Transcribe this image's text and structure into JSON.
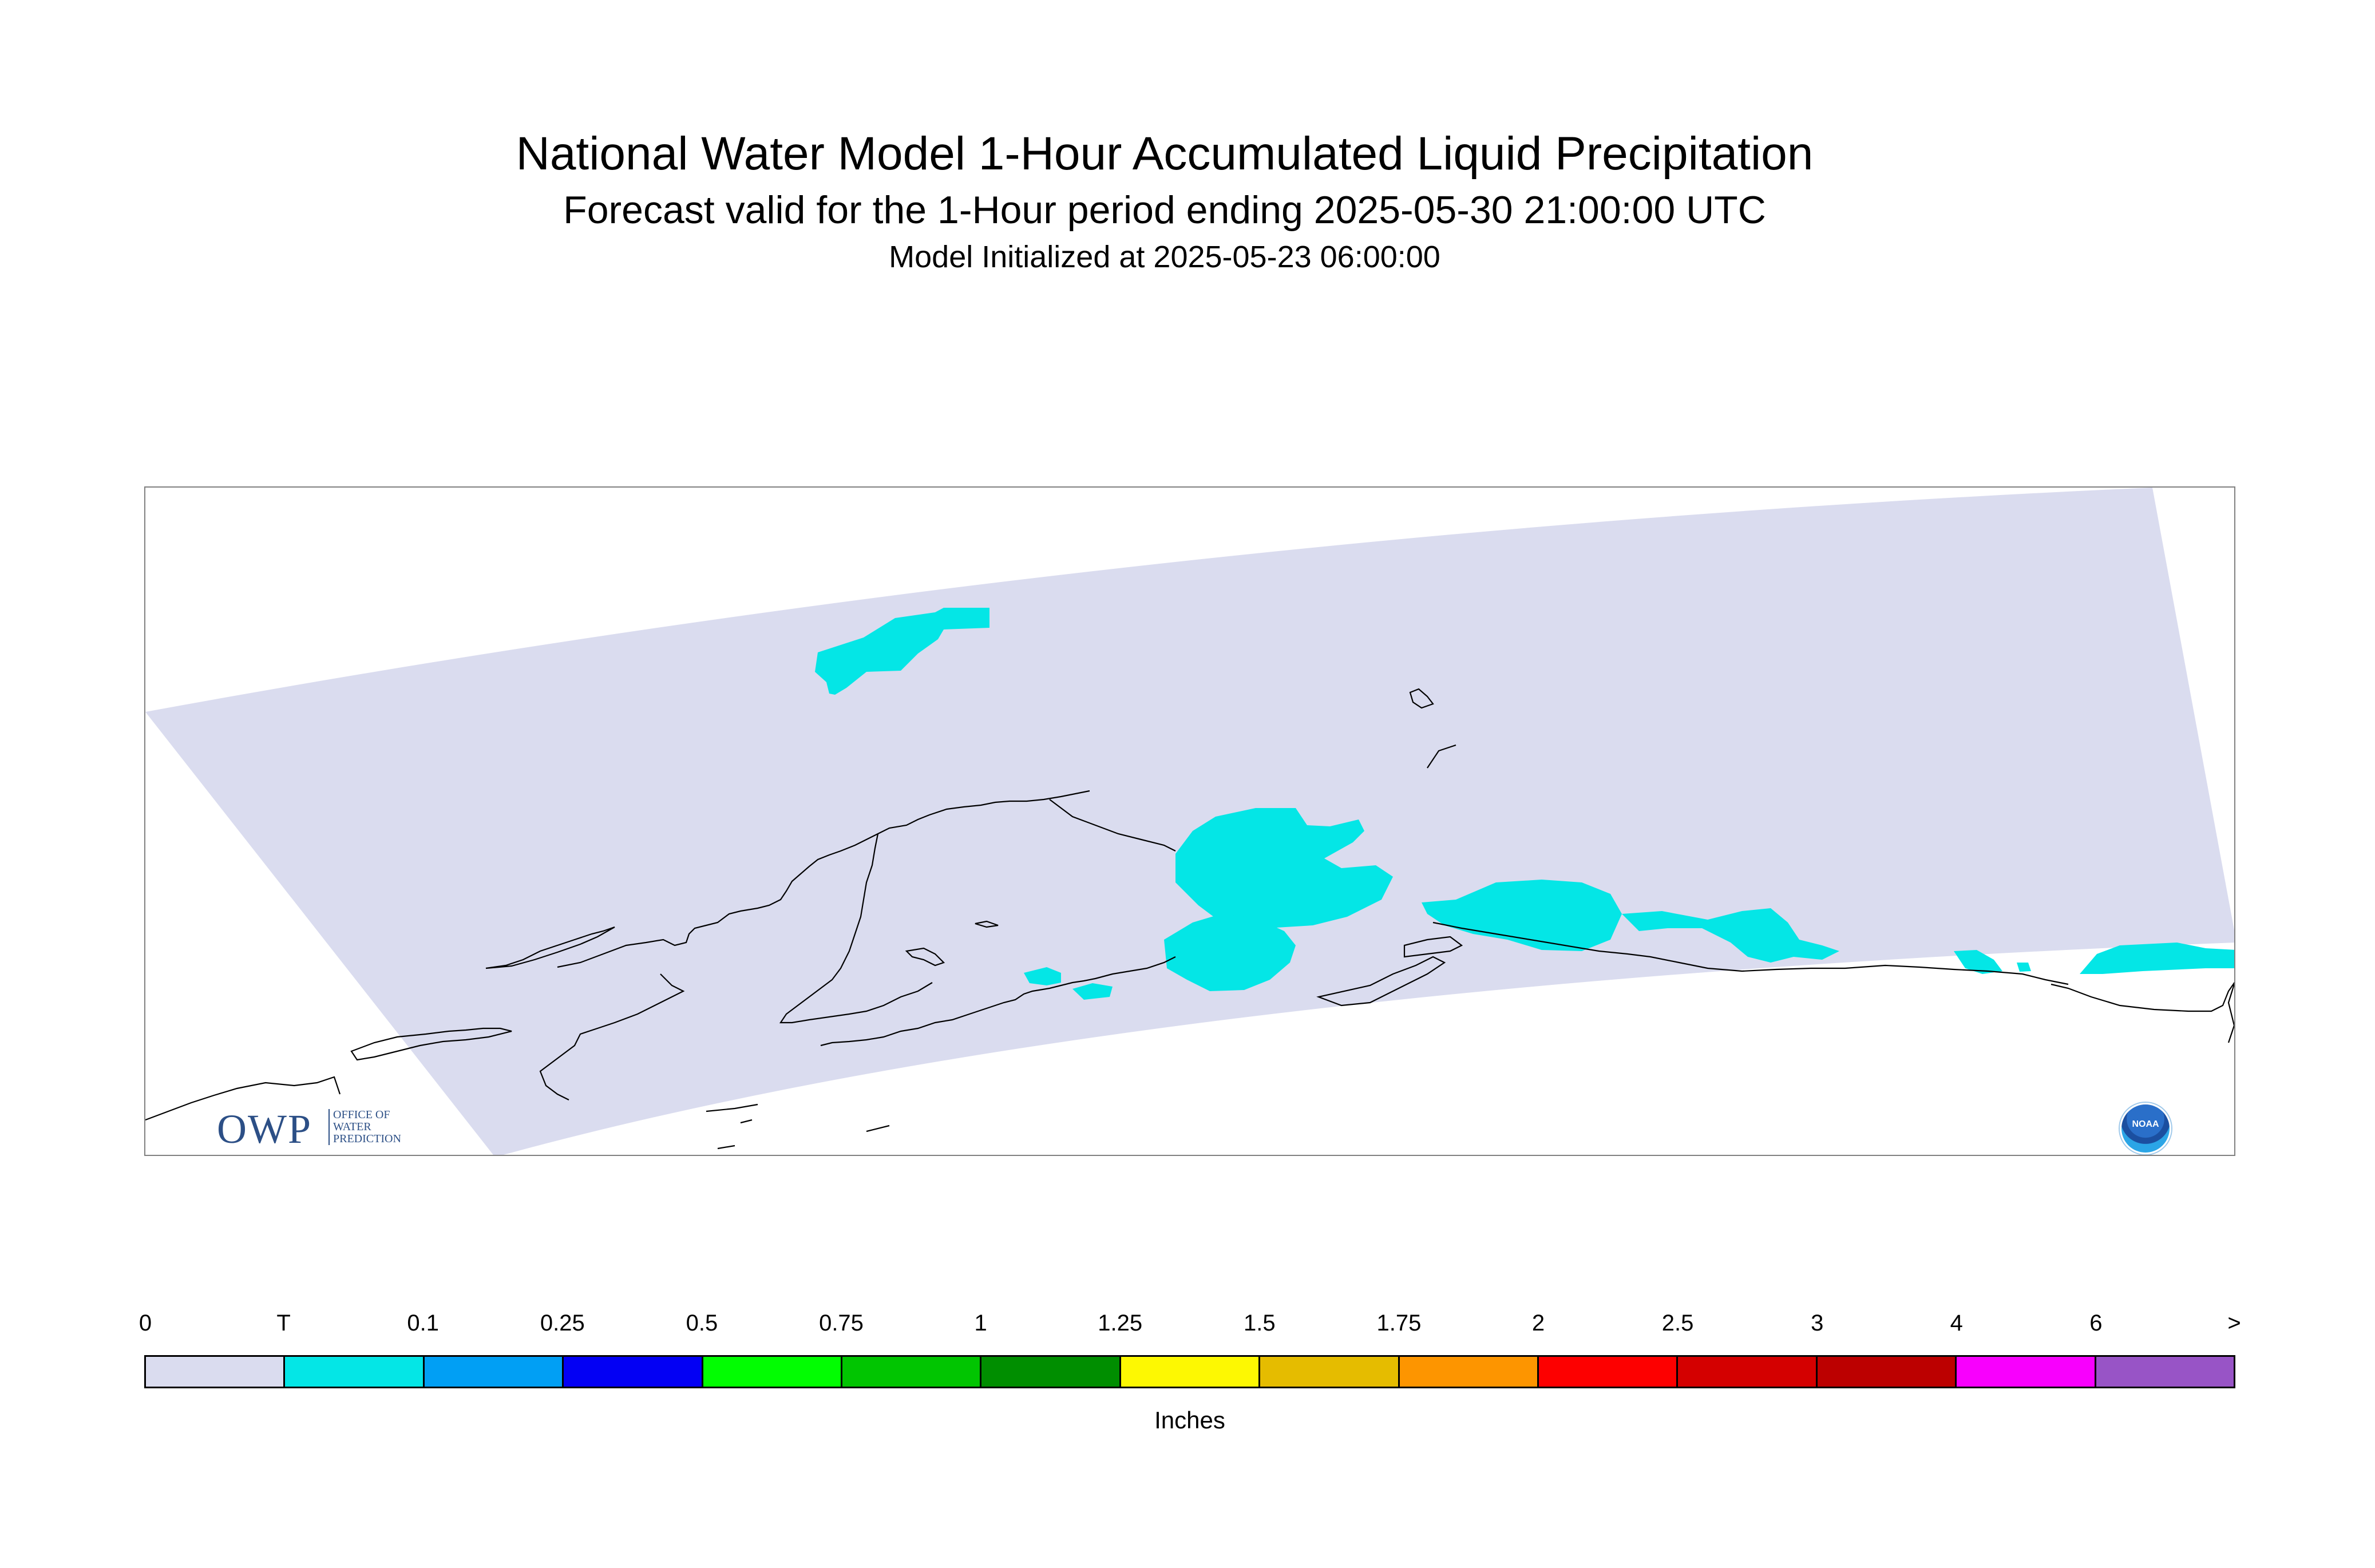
{
  "header": {
    "title": "National Water Model 1-Hour Accumulated Liquid Precipitation",
    "subtitle": "Forecast valid for the 1-Hour period ending 2025-05-30 21:00:00 UTC",
    "init_line": "Model Initialized at 2025-05-23 06:00:00"
  },
  "logos": {
    "owp_letters": "OWP",
    "owp_line1": "OFFICE OF",
    "owp_line2": "WATER",
    "owp_line3": "PREDICTION",
    "noaa": "NOAA"
  },
  "legend": {
    "units": "Inches",
    "tick_labels": [
      "0",
      "T",
      "0.1",
      "0.25",
      "0.5",
      "0.75",
      "1",
      "1.25",
      "1.5",
      "1.75",
      "2",
      "2.5",
      "3",
      "4",
      "6",
      ">"
    ],
    "colors": [
      "#dadcef",
      "#04e6e6",
      "#019ff4",
      "#0300f4",
      "#02fd02",
      "#01c501",
      "#008e00",
      "#fdf802",
      "#e5bc00",
      "#fd9500",
      "#fd0000",
      "#d40000",
      "#bc0000",
      "#f800fd",
      "#9854c6"
    ]
  },
  "map": {
    "domain_fill": "#dadcef",
    "precip_color": "#04e6e6",
    "coast_color": "#000000"
  }
}
